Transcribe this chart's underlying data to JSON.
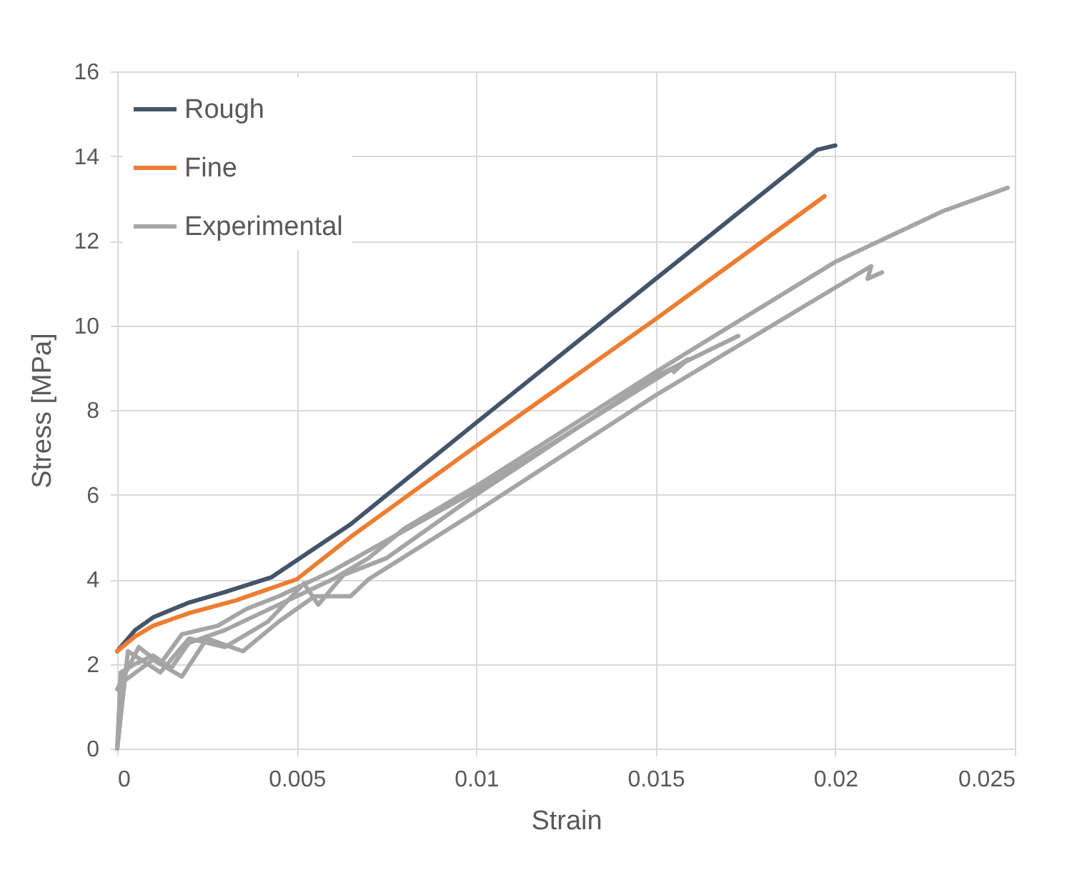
{
  "chart_data": {
    "type": "line",
    "xlabel": "Strain",
    "ylabel": "Stress [MPa]",
    "xlim": [
      0,
      0.025
    ],
    "xticks": [
      0,
      0.005,
      0.01,
      0.015,
      0.02,
      0.025
    ],
    "ylim": [
      0,
      16
    ],
    "yticks": [
      0,
      2,
      4,
      6,
      8,
      10,
      12,
      14,
      16
    ],
    "grid": true,
    "legend": "top left",
    "line_style": "solid",
    "series": [
      {
        "name": "Rough",
        "color": "#44546a",
        "x": [
          0,
          0.0005,
          0.001,
          0.002,
          0.003,
          0.0043,
          0.0065,
          0.01,
          0.015,
          0.0195,
          0.02
        ],
        "values": [
          2.3,
          2.8,
          3.1,
          3.45,
          3.7,
          4.05,
          5.3,
          7.7,
          11.1,
          14.15,
          14.25
        ]
      },
      {
        "name": "Fine",
        "color": "#ed7d31",
        "x": [
          0,
          0.0005,
          0.001,
          0.002,
          0.0033,
          0.005,
          0.0065,
          0.01,
          0.015,
          0.0197
        ],
        "values": [
          2.3,
          2.65,
          2.9,
          3.2,
          3.5,
          4.0,
          5.0,
          7.15,
          10.15,
          13.05
        ]
      },
      {
        "name": "Experimental",
        "color": "#a5a5a5",
        "x": [
          0,
          0.0001,
          0.0005,
          0.001,
          0.0015,
          0.002,
          0.003,
          0.004,
          0.005,
          0.006,
          0.007,
          0.008,
          0.01,
          0.015,
          0.02,
          0.0215,
          0.023,
          0.0248
        ],
        "values": [
          0,
          1.8,
          2.0,
          2.2,
          1.9,
          2.5,
          2.8,
          3.2,
          3.6,
          4.0,
          4.5,
          5.2,
          6.2,
          8.9,
          11.5,
          12.1,
          12.7,
          13.25
        ]
      },
      {
        "color": "#a5a5a5",
        "x": [
          0,
          0.0002,
          0.001,
          0.0018,
          0.0025,
          0.0035,
          0.0045,
          0.0055,
          0.0065,
          0.007,
          0.01,
          0.015,
          0.021,
          0.0209,
          0.0213
        ],
        "values": [
          0,
          1.6,
          2.1,
          1.7,
          2.6,
          2.3,
          3.0,
          3.6,
          3.6,
          4.0,
          5.6,
          8.35,
          11.4,
          11.1,
          11.25
        ]
      },
      {
        "color": "#a5a5a5",
        "x": [
          0,
          0.0003,
          0.0012,
          0.002,
          0.003,
          0.0042,
          0.0052,
          0.0056,
          0.0063,
          0.0075,
          0.01,
          0.015,
          0.0173
        ],
        "values": [
          0,
          2.3,
          1.8,
          2.6,
          2.4,
          3.0,
          3.9,
          3.4,
          4.1,
          4.5,
          6.0,
          8.8,
          9.75
        ]
      },
      {
        "color": "#a5a5a5",
        "x": [
          0,
          0.0006,
          0.0012,
          0.0018,
          0.0028,
          0.0036,
          0.0045,
          0.006,
          0.01,
          0.0159,
          0.0155
        ],
        "values": [
          1.4,
          2.4,
          2.0,
          2.7,
          2.9,
          3.3,
          3.6,
          4.2,
          6.1,
          9.2,
          8.9
        ]
      }
    ]
  }
}
